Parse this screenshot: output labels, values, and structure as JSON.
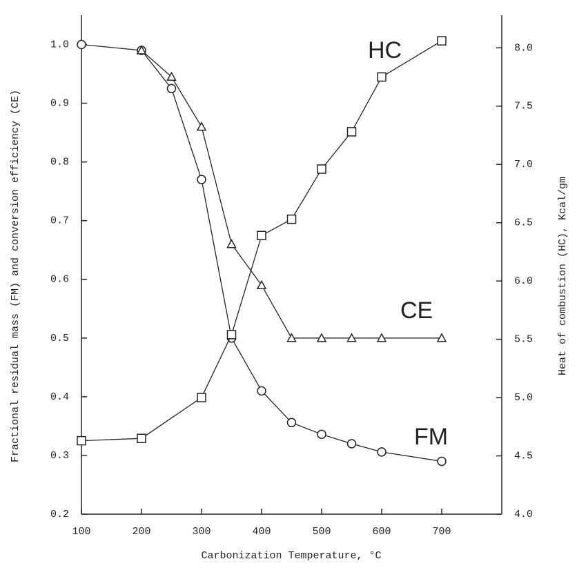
{
  "chart_data": {
    "type": "line",
    "xlabel": "Carbonization Temperature, °C",
    "ylabel": "Fractional residual mass (FM) and conversion efficiency (CE)",
    "y2label": "Heat of combustion (HC), Kcal/gm",
    "xlim": [
      100,
      800
    ],
    "xticks": [
      100,
      200,
      300,
      400,
      500,
      600,
      700
    ],
    "ylim": [
      0.2,
      1.05
    ],
    "yticks": [
      0.2,
      0.3,
      0.4,
      0.5,
      0.6,
      0.7,
      0.8,
      0.9,
      {
        "value": 1,
        "label": "1.0"
      }
    ],
    "y2lim": [
      4.0,
      8.28
    ],
    "y2ticks": [
      {
        "value": 4,
        "label": "4.0"
      },
      4.5,
      {
        "value": 5,
        "label": "5.0"
      },
      5.5,
      {
        "value": 6,
        "label": "6.0"
      },
      6.5,
      {
        "value": 7,
        "label": "7.0"
      },
      7.5,
      {
        "value": 8,
        "label": "8.0"
      }
    ],
    "grid": false,
    "series": [
      {
        "name": "FM",
        "color": "#222222",
        "marker": "circle",
        "x": [
          100,
          200,
          250,
          300,
          350,
          400,
          450,
          500,
          550,
          600,
          700
        ],
        "values": [
          1.0,
          0.99,
          0.925,
          0.77,
          0.5,
          0.41,
          0.356,
          0.336,
          0.32,
          0.306,
          0.29
        ]
      },
      {
        "name": "CE",
        "color": "#222222",
        "marker": "triangle",
        "x": [
          200,
          250,
          300,
          350,
          400,
          450,
          500,
          550,
          600,
          700
        ],
        "values": [
          0.99,
          0.945,
          0.86,
          0.66,
          0.59,
          0.5,
          0.5,
          0.5,
          0.5,
          0.5
        ]
      },
      {
        "name": "HC",
        "color": "#222222",
        "marker": "square",
        "axis": "y2",
        "x": [
          100,
          200,
          300,
          350,
          400,
          450,
          500,
          550,
          600,
          700
        ],
        "values": [
          4.63,
          4.65,
          5.0,
          5.54,
          6.39,
          6.53,
          6.96,
          7.28,
          7.75,
          8.06
        ]
      }
    ]
  }
}
